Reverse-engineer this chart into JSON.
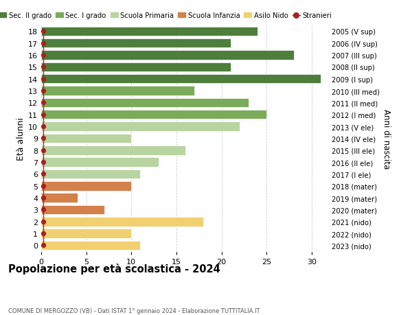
{
  "ages": [
    18,
    17,
    16,
    15,
    14,
    13,
    12,
    11,
    10,
    9,
    8,
    7,
    6,
    5,
    4,
    3,
    2,
    1,
    0
  ],
  "right_labels": [
    "2005 (V sup)",
    "2006 (IV sup)",
    "2007 (III sup)",
    "2008 (II sup)",
    "2009 (I sup)",
    "2010 (III med)",
    "2011 (II med)",
    "2012 (I med)",
    "2013 (V ele)",
    "2014 (IV ele)",
    "2015 (III ele)",
    "2016 (II ele)",
    "2017 (I ele)",
    "2018 (mater)",
    "2019 (mater)",
    "2020 (mater)",
    "2021 (nido)",
    "2022 (nido)",
    "2023 (nido)"
  ],
  "bar_values": [
    24,
    21,
    28,
    21,
    31,
    17,
    23,
    25,
    22,
    10,
    16,
    13,
    11,
    10,
    4,
    7,
    18,
    10,
    11
  ],
  "bar_colors": [
    "#4e7e3c",
    "#4e7e3c",
    "#4e7e3c",
    "#4e7e3c",
    "#4e7e3c",
    "#7aab59",
    "#7aab59",
    "#7aab59",
    "#b8d4a0",
    "#b8d4a0",
    "#b8d4a0",
    "#b8d4a0",
    "#b8d4a0",
    "#d4804a",
    "#d4804a",
    "#d4804a",
    "#f0d070",
    "#f0d070",
    "#f0d070"
  ],
  "stranieri_color": "#aa2020",
  "title": "Popolazione per età scolastica - 2024",
  "subtitle": "COMUNE DI MERGOZZO (VB) - Dati ISTAT 1° gennaio 2024 - Elaborazione TUTTITALIA.IT",
  "ylabel_left": "Età alunni",
  "ylabel_right": "Anni di nascita",
  "xlim": [
    0,
    32
  ],
  "xticks": [
    0,
    5,
    10,
    15,
    20,
    25,
    30
  ],
  "legend_labels": [
    "Sec. II grado",
    "Sec. I grado",
    "Scuola Primaria",
    "Scuola Infanzia",
    "Asilo Nido",
    "Stranieri"
  ],
  "legend_colors": [
    "#4e7e3c",
    "#7aab59",
    "#b8d4a0",
    "#d4804a",
    "#f0d070",
    "#aa2020"
  ],
  "legend_marker_types": [
    "bar",
    "bar",
    "bar",
    "bar",
    "bar",
    "dot"
  ],
  "bar_height": 0.78,
  "background_color": "#ffffff",
  "grid_color": "#cccccc"
}
